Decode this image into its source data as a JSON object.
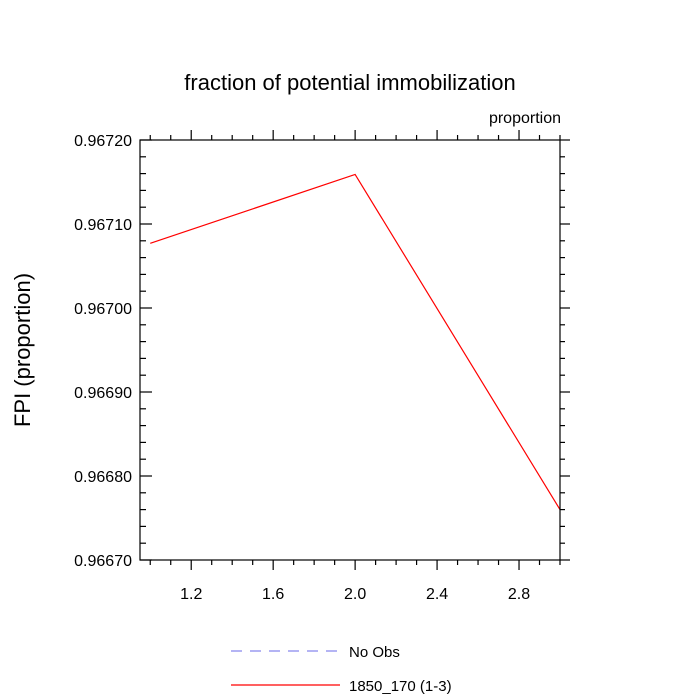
{
  "chart_data": {
    "type": "line",
    "title": "fraction of potential immobilization",
    "units_label": "proportion",
    "ylabel": "FPI  (proportion)",
    "xlabel": "",
    "xlim": [
      0.95,
      3.0
    ],
    "ylim": [
      0.9667,
      0.9672
    ],
    "x_ticks": [
      1.2,
      1.6,
      2.0,
      2.4,
      2.8
    ],
    "x_tick_labels": [
      "1.2",
      "1.6",
      "2.0",
      "2.4",
      "2.8"
    ],
    "y_ticks": [
      0.9667,
      0.9668,
      0.9669,
      0.967,
      0.9671,
      0.9672
    ],
    "y_tick_labels": [
      "0.96670",
      "0.96680",
      "0.96690",
      "0.96700",
      "0.96710",
      "0.96720"
    ],
    "grid": false,
    "legend_position": "bottom",
    "series": [
      {
        "name": "No Obs",
        "color": "#8888ee",
        "dash": "dashed",
        "x": [],
        "y": []
      },
      {
        "name": "1850_170 (1-3)",
        "color": "#ff0000",
        "dash": "solid",
        "x": [
          1.0,
          2.0,
          3.0
        ],
        "y": [
          0.967077,
          0.967159,
          0.96676
        ]
      }
    ]
  }
}
